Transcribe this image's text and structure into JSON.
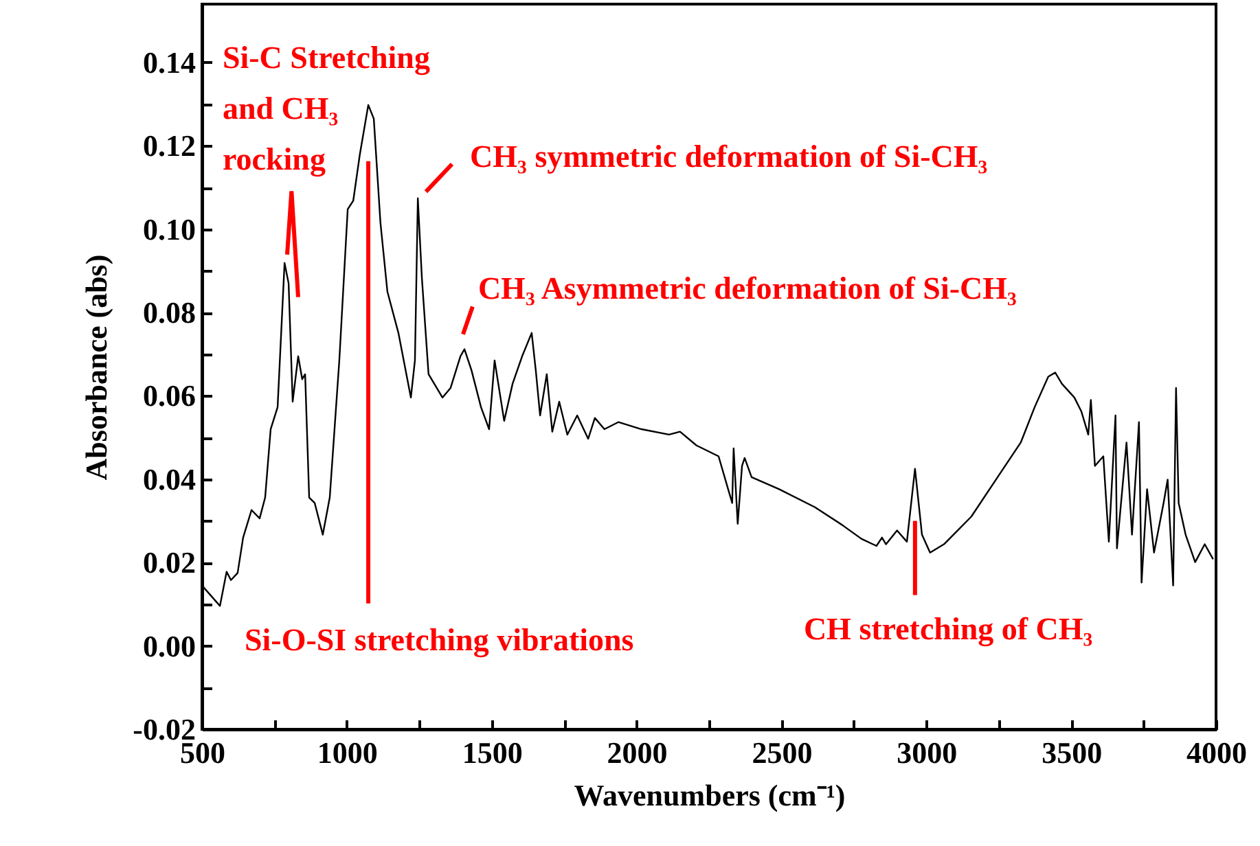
{
  "chart_data": {
    "type": "line",
    "xlabel": "Wavenumbers (cm⁻¹)",
    "ylabel": "Absorbance (abs)",
    "xlim": [
      500,
      4000
    ],
    "ylim": [
      -0.02,
      0.154
    ],
    "xticks": [
      500,
      {
        "value": 750,
        "label": null
      },
      1000,
      {
        "value": 1250,
        "label": null
      },
      1500,
      {
        "value": 1750,
        "label": null
      },
      2000,
      {
        "value": 2250,
        "label": null
      },
      2500,
      {
        "value": 2750,
        "label": null
      },
      3000,
      {
        "value": 3250,
        "label": null
      },
      3500,
      {
        "value": 3750,
        "label": null
      },
      4000
    ],
    "yticks": [
      {
        "value": -0.02,
        "label": "-0.02"
      },
      {
        "value": -0.01,
        "label": null
      },
      {
        "value": 0,
        "label": "0.00"
      },
      {
        "value": 0.01,
        "label": null
      },
      {
        "value": 0.02,
        "label": "0.02"
      },
      {
        "value": 0.03,
        "label": null
      },
      {
        "value": 0.04,
        "label": "0.04"
      },
      {
        "value": 0.05,
        "label": null
      },
      {
        "value": 0.06,
        "label": "0.06"
      },
      {
        "value": 0.07,
        "label": null
      },
      {
        "value": 0.08,
        "label": "0.08"
      },
      {
        "value": 0.09,
        "label": null
      },
      {
        "value": 0.1,
        "label": "0.10"
      },
      {
        "value": 0.11,
        "label": null
      },
      {
        "value": 0.12,
        "label": "0.12"
      },
      {
        "value": 0.13,
        "label": null
      },
      {
        "value": 0.14,
        "label": "0.14"
      }
    ],
    "grid": false,
    "annotations": [
      {
        "text": "Si-C Stretching and CH₃ rocking",
        "x": 800,
        "y": 0.092
      },
      {
        "text": "CH₃ symmetric deformation of Si-CH₃",
        "x": 1260,
        "y": 0.107
      },
      {
        "text": "CH₃ Asymmetric deformation of Si-CH₃",
        "x": 1400,
        "y": 0.071
      },
      "Si-O-SI  stretching vibrations",
      {
        "text": "CH stretching of CH₃",
        "x": 2961,
        "y": 0.03
      }
    ],
    "series": [
      {
        "color": "#000000",
        "x": [
          500,
          562,
          585,
          600,
          623,
          642,
          671,
          699,
          718,
          737,
          761,
          785,
          799,
          813,
          832,
          846,
          856,
          870,
          889,
          917,
          941,
          974,
          1003,
          1022,
          1045,
          1074,
          1093,
          1116,
          1140,
          1178,
          1221,
          1235,
          1245,
          1259,
          1282,
          1330,
          1358,
          1392,
          1406,
          1430,
          1463,
          1491,
          1510,
          1543,
          1572,
          1605,
          1638,
          1652,
          1667,
          1690,
          1709,
          1733,
          1761,
          1795,
          1833,
          1856,
          1889,
          1937,
          2017,
          2112,
          2150,
          2207,
          2283,
          2316,
          2330,
          2335,
          2349,
          2364,
          2373,
          2397,
          2492,
          2615,
          2710,
          2776,
          2828,
          2847,
          2861,
          2899,
          2933,
          2961,
          2985,
          3013,
          3061,
          3155,
          3250,
          3326,
          3374,
          3421,
          3445,
          3468,
          3511,
          3535,
          3559,
          3568,
          3582,
          3611,
          3630,
          3653,
          3658,
          3691,
          3710,
          3734,
          3743,
          3762,
          3786,
          3819,
          3833,
          3852,
          3862,
          3871,
          3895,
          3928,
          3961,
          3990
        ],
        "values": [
          0.0145,
          0.0096,
          0.0178,
          0.0158,
          0.0175,
          0.026,
          0.0326,
          0.0306,
          0.0356,
          0.052,
          0.0573,
          0.0919,
          0.087,
          0.0586,
          0.0695,
          0.064,
          0.0652,
          0.0356,
          0.0343,
          0.0267,
          0.0356,
          0.0685,
          0.1048,
          0.1068,
          0.118,
          0.1298,
          0.1265,
          0.1015,
          0.085,
          0.0751,
          0.0596,
          0.0685,
          0.1074,
          0.0883,
          0.0652,
          0.0596,
          0.0619,
          0.0695,
          0.0712,
          0.0662,
          0.0573,
          0.052,
          0.0685,
          0.054,
          0.0629,
          0.0695,
          0.0751,
          0.0662,
          0.0553,
          0.0652,
          0.0514,
          0.0586,
          0.0507,
          0.0553,
          0.0497,
          0.0547,
          0.052,
          0.0537,
          0.052,
          0.0507,
          0.0514,
          0.0481,
          0.0455,
          0.0376,
          0.0343,
          0.0474,
          0.0293,
          0.0432,
          0.0451,
          0.0405,
          0.0376,
          0.0333,
          0.029,
          0.0257,
          0.024,
          0.026,
          0.0244,
          0.0277,
          0.025,
          0.0425,
          0.0267,
          0.0224,
          0.0244,
          0.031,
          0.0409,
          0.0488,
          0.0573,
          0.0646,
          0.0656,
          0.0629,
          0.0596,
          0.0563,
          0.0507,
          0.059,
          0.0432,
          0.0455,
          0.025,
          0.0553,
          0.0234,
          0.0488,
          0.0267,
          0.0537,
          0.0152,
          0.0376,
          0.0224,
          0.0343,
          0.0399,
          0.0145,
          0.0619,
          0.0343,
          0.0267,
          0.0201,
          0.0244,
          0.0208
        ]
      }
    ]
  }
}
